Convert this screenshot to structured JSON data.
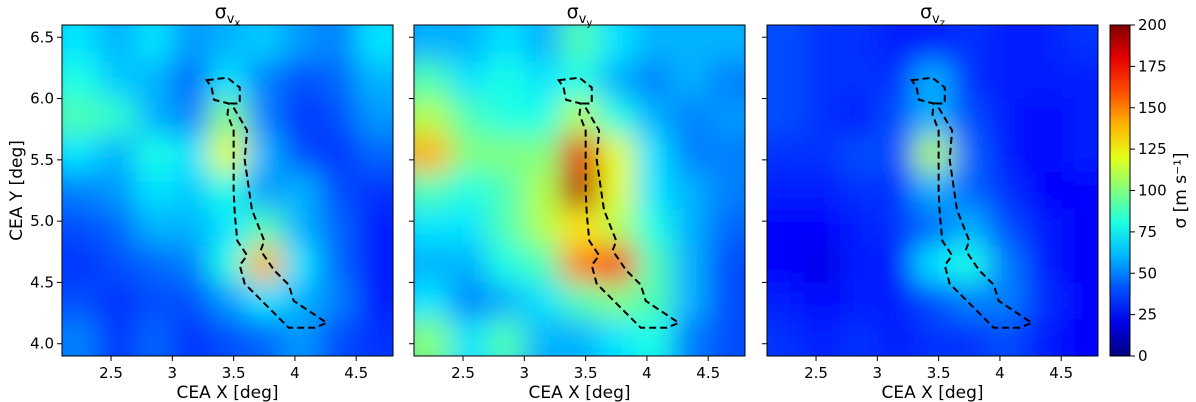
{
  "chart_data": [
    {
      "type": "heatmap",
      "title": {
        "symbol": "σ",
        "sub": "v",
        "subsub": "x"
      },
      "xlabel": "CEA X [deg]",
      "ylabel": "CEA Y [deg]",
      "xlim": [
        2.1,
        4.8
      ],
      "xticks": [
        2.5,
        3.0,
        3.5,
        4.0,
        4.5
      ],
      "ylim": [
        3.9,
        6.6
      ],
      "yticks": [
        {
          "value": 4,
          "label": "4.0"
        },
        4.5,
        {
          "value": 5,
          "label": "5.0"
        },
        5.5,
        {
          "value": 6,
          "label": "6.0"
        },
        6.5
      ],
      "z": [
        [
          70,
          60,
          70,
          55,
          60,
          65,
          55,
          50,
          70
        ],
        [
          80,
          65,
          60,
          45,
          70,
          50,
          40,
          45,
          60
        ],
        [
          90,
          85,
          60,
          50,
          100,
          50,
          35,
          40,
          55
        ],
        [
          70,
          60,
          80,
          70,
          120,
          60,
          40,
          35,
          45
        ],
        [
          50,
          55,
          70,
          65,
          80,
          55,
          60,
          40,
          35
        ],
        [
          40,
          45,
          60,
          60,
          70,
          90,
          60,
          45,
          30
        ],
        [
          35,
          40,
          45,
          50,
          80,
          140,
          70,
          45,
          30
        ],
        [
          40,
          35,
          40,
          40,
          55,
          70,
          60,
          50,
          30
        ],
        [
          50,
          35,
          45,
          35,
          40,
          45,
          55,
          40,
          35
        ]
      ]
    },
    {
      "type": "heatmap",
      "title": {
        "symbol": "σ",
        "sub": "v",
        "subsub": "y"
      },
      "xlabel": "CEA X [deg]",
      "xlim": [
        2.1,
        4.8
      ],
      "xticks": [
        2.5,
        3.0,
        3.5,
        4.0,
        4.5
      ],
      "ylim": [
        3.9,
        6.6
      ],
      "yticks": [
        4,
        4.5,
        5,
        5.5,
        6,
        6.5
      ],
      "z": [
        [
          60,
          60,
          70,
          60,
          90,
          70,
          60,
          60,
          60
        ],
        [
          90,
          70,
          80,
          70,
          80,
          60,
          50,
          60,
          50
        ],
        [
          110,
          90,
          80,
          80,
          110,
          80,
          60,
          50,
          55
        ],
        [
          140,
          100,
          100,
          100,
          180,
          120,
          70,
          50,
          50
        ],
        [
          90,
          80,
          90,
          110,
          190,
          120,
          70,
          60,
          50
        ],
        [
          70,
          70,
          90,
          110,
          130,
          110,
          80,
          60,
          45
        ],
        [
          60,
          60,
          80,
          90,
          150,
          170,
          90,
          60,
          40
        ],
        [
          70,
          50,
          60,
          70,
          90,
          100,
          90,
          60,
          40
        ],
        [
          100,
          70,
          90,
          60,
          60,
          70,
          80,
          50,
          40
        ]
      ]
    },
    {
      "type": "heatmap",
      "title": {
        "symbol": "σ",
        "sub": "v",
        "subsub": "z"
      },
      "xlabel": "CEA X [deg]",
      "xlim": [
        2.1,
        4.8
      ],
      "xticks": [
        2.5,
        3.0,
        3.5,
        4.0,
        4.5
      ],
      "ylim": [
        3.9,
        6.6
      ],
      "yticks": [
        4,
        4.5,
        5,
        5.5,
        6,
        6.5
      ],
      "z": [
        [
          40,
          35,
          35,
          30,
          30,
          35,
          30,
          30,
          35
        ],
        [
          40,
          35,
          35,
          35,
          60,
          35,
          30,
          30,
          30
        ],
        [
          40,
          35,
          30,
          40,
          60,
          40,
          30,
          25,
          30
        ],
        [
          35,
          35,
          40,
          40,
          110,
          45,
          30,
          25,
          30
        ],
        [
          30,
          30,
          35,
          35,
          60,
          45,
          35,
          25,
          25
        ],
        [
          25,
          25,
          30,
          35,
          45,
          60,
          40,
          30,
          25
        ],
        [
          25,
          20,
          30,
          30,
          70,
          80,
          50,
          30,
          25
        ],
        [
          30,
          25,
          30,
          30,
          40,
          50,
          50,
          35,
          25
        ],
        [
          35,
          30,
          35,
          30,
          35,
          35,
          40,
          30,
          25
        ]
      ]
    }
  ],
  "contour": {
    "x": [
      3.28,
      3.45,
      3.55,
      3.55,
      3.48,
      3.61,
      3.59,
      3.65,
      3.75,
      3.72,
      3.83,
      3.95,
      3.99,
      4.26,
      4.16,
      3.95,
      3.83,
      3.59,
      3.55,
      3.61,
      3.53,
      3.51,
      3.5,
      3.5,
      3.45,
      3.46,
      3.34,
      3.32
    ],
    "y": [
      6.15,
      6.17,
      6.09,
      5.96,
      5.96,
      5.74,
      5.5,
      5.09,
      4.84,
      4.76,
      4.6,
      4.48,
      4.35,
      4.17,
      4.13,
      4.13,
      4.25,
      4.49,
      4.64,
      4.72,
      4.84,
      5.05,
      5.25,
      5.74,
      5.87,
      5.96,
      5.99,
      6.09
    ]
  },
  "colorbar": {
    "label": "σ [m s⁻¹]",
    "lim": [
      0,
      200
    ],
    "ticks": [
      0,
      25,
      50,
      75,
      100,
      125,
      150,
      175,
      200
    ],
    "colormap": "jet"
  }
}
